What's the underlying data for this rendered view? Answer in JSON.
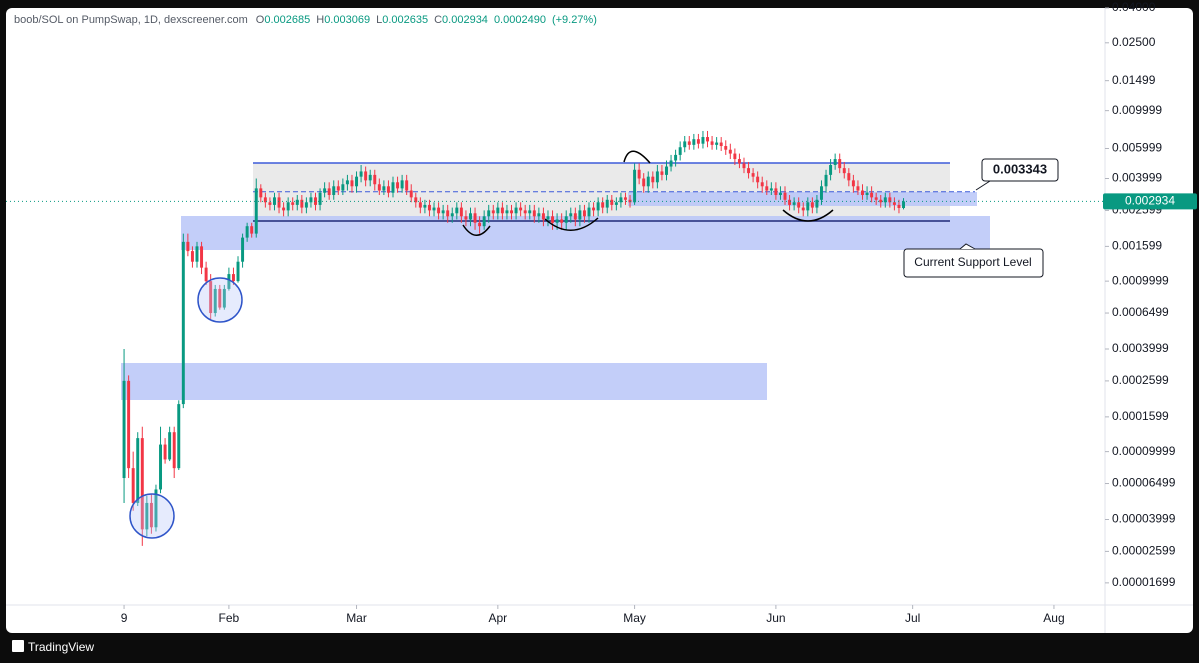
{
  "header": {
    "title": "boob/SOL on PumpSwap, 1D, dexscreener.com",
    "open": {
      "label": "O",
      "value": 0.002685
    },
    "high": {
      "label": "H",
      "value": 0.003069
    },
    "low": {
      "label": "L",
      "value": 0.002635
    },
    "close": {
      "label": "C",
      "value": 0.002934
    },
    "change": "0.0002490",
    "change_pct": "(+9.27%)"
  },
  "footer": {
    "brand": "TradingView"
  },
  "chart_data": {
    "type": "candlestick",
    "log_scale": true,
    "up_color": "#089981",
    "down_color": "#f23645",
    "xlim": [
      -25.9,
      215.2
    ],
    "xticks": [
      {
        "value": 0,
        "label": "9"
      },
      {
        "value": 23,
        "label": "Feb"
      },
      {
        "value": 51,
        "label": "Mar"
      },
      {
        "value": 82,
        "label": "Apr"
      },
      {
        "value": 112,
        "label": "May"
      },
      {
        "value": 143,
        "label": "Jun"
      },
      {
        "value": 173,
        "label": "Jul"
      },
      {
        "value": 204,
        "label": "Aug"
      }
    ],
    "ylim": [
      1.26e-05,
      0.04
    ],
    "yticks": [
      {
        "value": 0.04,
        "label": "0.04000"
      },
      {
        "value": 0.025,
        "label": "0.02500"
      },
      0.01499,
      0.009999,
      0.005999,
      0.003999,
      0.002599,
      0.001599,
      0.0009999,
      0.0006499,
      0.0003999,
      0.0002599,
      0.0001599,
      9.999e-05,
      6.499e-05,
      3.999e-05,
      2.599e-05,
      1.699e-05
    ],
    "annotations": [
      {
        "text": 0.003343
      },
      {
        "text": "Current Support Level"
      }
    ],
    "candles": [
      [
        7e-05,
        0.0004,
        5e-05,
        0.00026
      ],
      [
        0.00026,
        0.00028,
        7e-05,
        8e-05
      ],
      [
        8e-05,
        0.0001,
        4.5e-05,
        5e-05
      ],
      [
        5e-05,
        0.00013,
        4.8e-05,
        0.00012
      ],
      [
        0.00012,
        0.00014,
        2.8e-05,
        3.5e-05
      ],
      [
        3.5e-05,
        5.5e-05,
        3.2e-05,
        5e-05
      ],
      [
        5e-05,
        5.6e-05,
        3.3e-05,
        3.6e-05
      ],
      [
        3.6e-05,
        6.4e-05,
        3.4e-05,
        6e-05
      ],
      [
        6e-05,
        0.00014,
        5.7e-05,
        0.00011
      ],
      [
        0.00011,
        0.00012,
        8.5e-05,
        9e-05
      ],
      [
        9e-05,
        0.00014,
        8.8e-05,
        0.00013
      ],
      [
        0.00013,
        0.00014,
        7e-05,
        8e-05
      ],
      [
        8e-05,
        0.0002,
        7.8e-05,
        0.00019
      ],
      [
        0.00019,
        0.0019,
        0.00018,
        0.0017
      ],
      [
        0.0017,
        0.0019,
        0.0014,
        0.0015
      ],
      [
        0.0015,
        0.0016,
        0.0012,
        0.0013
      ],
      [
        0.0013,
        0.0017,
        0.0012,
        0.0016
      ],
      [
        0.0016,
        0.0017,
        0.0011,
        0.0012
      ],
      [
        0.0012,
        0.0013,
        0.00095,
        0.001
      ],
      [
        0.001,
        0.0011,
        0.0006,
        0.00065
      ],
      [
        0.00065,
        0.00095,
        0.00062,
        0.0009
      ],
      [
        0.0009,
        0.00095,
        0.00068,
        0.0007
      ],
      [
        0.0007,
        0.00095,
        0.00068,
        0.0009
      ],
      [
        0.0009,
        0.0012,
        0.00088,
        0.0011
      ],
      [
        0.0011,
        0.0012,
        0.00095,
        0.001
      ],
      [
        0.001,
        0.0014,
        0.00098,
        0.0013
      ],
      [
        0.0013,
        0.0019,
        0.0012,
        0.0018
      ],
      [
        0.0018,
        0.0022,
        0.0017,
        0.0021
      ],
      [
        0.0021,
        0.0022,
        0.0018,
        0.0019
      ],
      [
        0.0019,
        0.004,
        0.0018,
        0.0035
      ],
      [
        0.0035,
        0.0037,
        0.0029,
        0.0031
      ],
      [
        0.0031,
        0.0033,
        0.0027,
        0.0029
      ],
      [
        0.0029,
        0.0031,
        0.0026,
        0.0028
      ],
      [
        0.0028,
        0.0033,
        0.0026,
        0.0031
      ],
      [
        0.0031,
        0.0033,
        0.0025,
        0.0027
      ],
      [
        0.0027,
        0.0029,
        0.0024,
        0.0026
      ],
      [
        0.0026,
        0.0031,
        0.0024,
        0.0029
      ],
      [
        0.0029,
        0.0031,
        0.0026,
        0.0028
      ],
      [
        0.0028,
        0.0032,
        0.0026,
        0.003
      ],
      [
        0.003,
        0.0032,
        0.0025,
        0.0027
      ],
      [
        0.0027,
        0.0031,
        0.0025,
        0.0029
      ],
      [
        0.0029,
        0.0033,
        0.0027,
        0.0031
      ],
      [
        0.0031,
        0.0033,
        0.0026,
        0.0028
      ],
      [
        0.0028,
        0.0035,
        0.0026,
        0.0033
      ],
      [
        0.0033,
        0.0038,
        0.0031,
        0.0035
      ],
      [
        0.0035,
        0.0038,
        0.003,
        0.0032
      ],
      [
        0.0032,
        0.0039,
        0.003,
        0.0036
      ],
      [
        0.0036,
        0.0039,
        0.0032,
        0.0034
      ],
      [
        0.0034,
        0.004,
        0.0032,
        0.0037
      ],
      [
        0.0037,
        0.0042,
        0.0034,
        0.0039
      ],
      [
        0.0039,
        0.0042,
        0.0033,
        0.0036
      ],
      [
        0.0036,
        0.0044,
        0.0033,
        0.0041
      ],
      [
        0.0041,
        0.0048,
        0.0038,
        0.0044
      ],
      [
        0.0044,
        0.0047,
        0.0036,
        0.0039
      ],
      [
        0.0039,
        0.0045,
        0.0036,
        0.0042
      ],
      [
        0.0042,
        0.0045,
        0.0034,
        0.0037
      ],
      [
        0.0037,
        0.004,
        0.0032,
        0.0034
      ],
      [
        0.0034,
        0.0039,
        0.0032,
        0.0036
      ],
      [
        0.0036,
        0.0039,
        0.0031,
        0.0033
      ],
      [
        0.0033,
        0.0041,
        0.0031,
        0.0038
      ],
      [
        0.0038,
        0.0041,
        0.0033,
        0.0035
      ],
      [
        0.0035,
        0.0042,
        0.0033,
        0.0039
      ],
      [
        0.0039,
        0.0042,
        0.0032,
        0.0034
      ],
      [
        0.0034,
        0.0037,
        0.0029,
        0.0031
      ],
      [
        0.0031,
        0.0033,
        0.0027,
        0.0029
      ],
      [
        0.0029,
        0.0031,
        0.0025,
        0.0027
      ],
      [
        0.0027,
        0.003,
        0.0025,
        0.0028
      ],
      [
        0.0028,
        0.003,
        0.0024,
        0.0026
      ],
      [
        0.0026,
        0.0029,
        0.0024,
        0.0027
      ],
      [
        0.0027,
        0.0029,
        0.0023,
        0.0025
      ],
      [
        0.0025,
        0.0028,
        0.0023,
        0.0026
      ],
      [
        0.0026,
        0.0028,
        0.0022,
        0.0024
      ],
      [
        0.0024,
        0.0027,
        0.0022,
        0.0025
      ],
      [
        0.0025,
        0.0029,
        0.0023,
        0.0027
      ],
      [
        0.0027,
        0.0029,
        0.0022,
        0.0024
      ],
      [
        0.0024,
        0.0026,
        0.0021,
        0.0023
      ],
      [
        0.0023,
        0.0027,
        0.0021,
        0.0025
      ],
      [
        0.0025,
        0.0027,
        0.002,
        0.0022
      ],
      [
        0.0022,
        0.0024,
        0.0019,
        0.0021
      ],
      [
        0.0021,
        0.0026,
        0.002,
        0.0024
      ],
      [
        0.0024,
        0.0028,
        0.0022,
        0.0026
      ],
      [
        0.0026,
        0.0028,
        0.0023,
        0.0025
      ],
      [
        0.0025,
        0.0029,
        0.0023,
        0.0027
      ],
      [
        0.0027,
        0.0029,
        0.0023,
        0.0025
      ],
      [
        0.0025,
        0.0028,
        0.0023,
        0.0026
      ],
      [
        0.0026,
        0.0028,
        0.0023,
        0.0025
      ],
      [
        0.0025,
        0.0029,
        0.0023,
        0.0027
      ],
      [
        0.0027,
        0.0029,
        0.0024,
        0.0026
      ],
      [
        0.0026,
        0.0028,
        0.0023,
        0.0025
      ],
      [
        0.0025,
        0.0028,
        0.0023,
        0.0026
      ],
      [
        0.0026,
        0.0028,
        0.0022,
        0.0024
      ],
      [
        0.0024,
        0.0027,
        0.0022,
        0.0025
      ],
      [
        0.0025,
        0.0027,
        0.0021,
        0.0023
      ],
      [
        0.0023,
        0.0026,
        0.0021,
        0.0024
      ],
      [
        0.0024,
        0.0026,
        0.002,
        0.0022
      ],
      [
        0.0022,
        0.0025,
        0.002,
        0.0023
      ],
      [
        0.0023,
        0.0025,
        0.002,
        0.0022
      ],
      [
        0.0022,
        0.0026,
        0.002,
        0.0024
      ],
      [
        0.0024,
        0.0027,
        0.0022,
        0.0025
      ],
      [
        0.0025,
        0.0027,
        0.0021,
        0.0023
      ],
      [
        0.0023,
        0.0028,
        0.0021,
        0.0026
      ],
      [
        0.0026,
        0.0028,
        0.0022,
        0.0024
      ],
      [
        0.0024,
        0.0029,
        0.0022,
        0.0027
      ],
      [
        0.0027,
        0.0029,
        0.0024,
        0.0026
      ],
      [
        0.0026,
        0.0031,
        0.0024,
        0.0029
      ],
      [
        0.0029,
        0.0031,
        0.0025,
        0.0027
      ],
      [
        0.0027,
        0.0032,
        0.0025,
        0.003
      ],
      [
        0.003,
        0.0032,
        0.0026,
        0.0028
      ],
      [
        0.0028,
        0.0031,
        0.0026,
        0.0029
      ],
      [
        0.0029,
        0.0033,
        0.0027,
        0.0031
      ],
      [
        0.0031,
        0.0033,
        0.0028,
        0.003
      ],
      [
        0.003,
        0.0032,
        0.0027,
        0.0029
      ],
      [
        0.0029,
        0.0049,
        0.0028,
        0.0045
      ],
      [
        0.0045,
        0.0049,
        0.0037,
        0.004
      ],
      [
        0.004,
        0.0043,
        0.0033,
        0.0036
      ],
      [
        0.0036,
        0.0044,
        0.0033,
        0.0041
      ],
      [
        0.0041,
        0.0044,
        0.0035,
        0.0038
      ],
      [
        0.0038,
        0.0048,
        0.0035,
        0.0044
      ],
      [
        0.0044,
        0.0048,
        0.0039,
        0.0042
      ],
      [
        0.0042,
        0.0051,
        0.0039,
        0.0047
      ],
      [
        0.0047,
        0.0055,
        0.0044,
        0.0051
      ],
      [
        0.0051,
        0.0059,
        0.0047,
        0.0055
      ],
      [
        0.0055,
        0.0066,
        0.0051,
        0.0061
      ],
      [
        0.0061,
        0.0071,
        0.0057,
        0.0066
      ],
      [
        0.0066,
        0.0071,
        0.0059,
        0.0063
      ],
      [
        0.0063,
        0.0073,
        0.0059,
        0.0068
      ],
      [
        0.0068,
        0.0073,
        0.006,
        0.0064
      ],
      [
        0.0064,
        0.0076,
        0.006,
        0.007
      ],
      [
        0.007,
        0.0076,
        0.0061,
        0.0066
      ],
      [
        0.0066,
        0.0071,
        0.0059,
        0.0063
      ],
      [
        0.0063,
        0.007,
        0.0059,
        0.0065
      ],
      [
        0.0065,
        0.007,
        0.0058,
        0.0062
      ],
      [
        0.0062,
        0.0067,
        0.0055,
        0.0059
      ],
      [
        0.0059,
        0.0064,
        0.0052,
        0.0056
      ],
      [
        0.0056,
        0.006,
        0.0048,
        0.0052
      ],
      [
        0.0052,
        0.0056,
        0.0046,
        0.0049
      ],
      [
        0.0049,
        0.0053,
        0.0043,
        0.0046
      ],
      [
        0.0046,
        0.005,
        0.004,
        0.0043
      ],
      [
        0.0043,
        0.0046,
        0.0038,
        0.0041
      ],
      [
        0.0041,
        0.0044,
        0.0035,
        0.0038
      ],
      [
        0.0038,
        0.0041,
        0.0033,
        0.0036
      ],
      [
        0.0036,
        0.0039,
        0.0032,
        0.0034
      ],
      [
        0.0034,
        0.0038,
        0.0032,
        0.0035
      ],
      [
        0.0035,
        0.0038,
        0.003,
        0.0032
      ],
      [
        0.0032,
        0.0036,
        0.003,
        0.0033
      ],
      [
        0.0033,
        0.0036,
        0.0028,
        0.003
      ],
      [
        0.003,
        0.0032,
        0.0026,
        0.0028
      ],
      [
        0.0028,
        0.0031,
        0.0026,
        0.0029
      ],
      [
        0.0029,
        0.0031,
        0.0025,
        0.0027
      ],
      [
        0.0027,
        0.0029,
        0.0024,
        0.0026
      ],
      [
        0.0026,
        0.0031,
        0.0024,
        0.0029
      ],
      [
        0.0029,
        0.0031,
        0.0025,
        0.0027
      ],
      [
        0.0027,
        0.0032,
        0.0025,
        0.003
      ],
      [
        0.003,
        0.0039,
        0.0028,
        0.0036
      ],
      [
        0.0036,
        0.0045,
        0.0033,
        0.0042
      ],
      [
        0.0042,
        0.0052,
        0.0039,
        0.0048
      ],
      [
        0.0048,
        0.0056,
        0.0045,
        0.0052
      ],
      [
        0.0052,
        0.0056,
        0.0043,
        0.0046
      ],
      [
        0.0046,
        0.005,
        0.004,
        0.0043
      ],
      [
        0.0043,
        0.0046,
        0.0036,
        0.0039
      ],
      [
        0.0039,
        0.0042,
        0.0033,
        0.0036
      ],
      [
        0.0036,
        0.0039,
        0.0032,
        0.0034
      ],
      [
        0.0034,
        0.0037,
        0.003,
        0.0032
      ],
      [
        0.0032,
        0.0036,
        0.003,
        0.0033
      ],
      [
        0.0033,
        0.0036,
        0.0029,
        0.0031
      ],
      [
        0.0031,
        0.0033,
        0.0028,
        0.003
      ],
      [
        0.003,
        0.0032,
        0.0027,
        0.0029
      ],
      [
        0.0029,
        0.0033,
        0.0027,
        0.0031
      ],
      [
        0.0031,
        0.0033,
        0.0027,
        0.0029
      ],
      [
        0.0029,
        0.0031,
        0.0026,
        0.0028
      ],
      [
        0.0028,
        0.003,
        0.0025,
        0.002685
      ],
      [
        0.002685,
        0.003069,
        0.002635,
        0.002934
      ]
    ]
  }
}
